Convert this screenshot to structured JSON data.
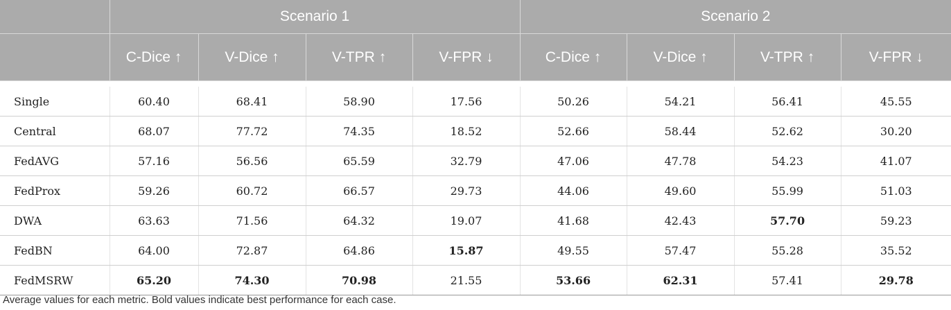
{
  "table": {
    "scenarios": [
      "Scenario 1",
      "Scenario 2"
    ],
    "metrics": [
      "C-Dice ↑",
      "V-Dice ↑",
      "V-TPR ↑",
      "V-FPR ↓",
      "C-Dice ↑",
      "V-Dice ↑",
      "V-TPR ↑",
      "V-FPR ↓"
    ],
    "rows": [
      {
        "method": "Single",
        "values": [
          "60.40",
          "68.41",
          "58.90",
          "17.56",
          "50.26",
          "54.21",
          "56.41",
          "45.55"
        ],
        "best": []
      },
      {
        "method": "Central",
        "values": [
          "68.07",
          "77.72",
          "74.35",
          "18.52",
          "52.66",
          "58.44",
          "52.62",
          "30.20"
        ],
        "best": []
      },
      {
        "method": "FedAVG",
        "values": [
          "57.16",
          "56.56",
          "65.59",
          "32.79",
          "47.06",
          "47.78",
          "54.23",
          "41.07"
        ],
        "best": []
      },
      {
        "method": "FedProx",
        "values": [
          "59.26",
          "60.72",
          "66.57",
          "29.73",
          "44.06",
          "49.60",
          "55.99",
          "51.03"
        ],
        "best": []
      },
      {
        "method": "DWA",
        "values": [
          "63.63",
          "71.56",
          "64.32",
          "19.07",
          "41.68",
          "42.43",
          "57.70",
          "59.23"
        ],
        "best": [
          6
        ]
      },
      {
        "method": "FedBN",
        "values": [
          "64.00",
          "72.87",
          "64.86",
          "15.87",
          "49.55",
          "57.47",
          "55.28",
          "35.52"
        ],
        "best": [
          3
        ]
      },
      {
        "method": "FedMSRW",
        "values": [
          "65.20",
          "74.30",
          "70.98",
          "21.55",
          "53.66",
          "62.31",
          "57.41",
          "29.78"
        ],
        "best": [
          0,
          1,
          2,
          4,
          5,
          7
        ]
      }
    ]
  },
  "caption": "Average values for each metric. Bold values indicate best performance for each case."
}
